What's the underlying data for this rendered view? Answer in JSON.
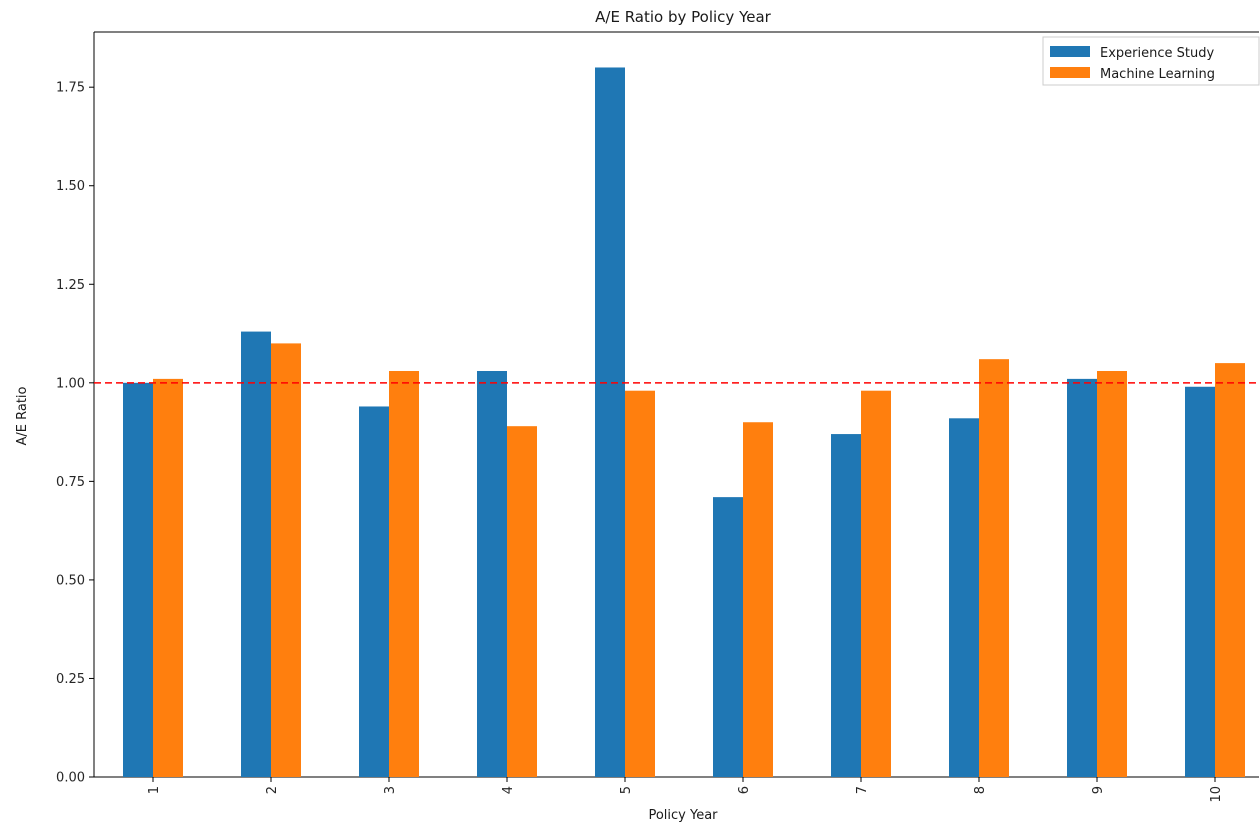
{
  "chart_data": {
    "type": "bar",
    "title": "A/E Ratio by Policy Year",
    "xlabel": "Policy Year",
    "ylabel": "A/E Ratio",
    "categories": [
      "1",
      "2",
      "3",
      "4",
      "5",
      "6",
      "7",
      "8",
      "9",
      "10"
    ],
    "series": [
      {
        "name": "Experience Study",
        "color": "#1f77b4",
        "values": [
          1.0,
          1.13,
          0.94,
          1.03,
          1.8,
          0.71,
          0.87,
          0.91,
          1.01,
          0.99
        ]
      },
      {
        "name": "Machine Learning",
        "color": "#ff7f0e",
        "values": [
          1.01,
          1.1,
          1.03,
          0.89,
          0.98,
          0.9,
          0.98,
          1.06,
          1.03,
          1.05
        ]
      }
    ],
    "ylim": [
      0,
      1.89
    ],
    "yticks": [
      "0.00",
      "0.25",
      "0.50",
      "0.75",
      "1.00",
      "1.25",
      "1.50",
      "1.75"
    ],
    "reference_line": {
      "value": 1.0,
      "color": "#ff0000",
      "style": "dashed"
    },
    "grid": false,
    "legend_position": "top-right"
  }
}
